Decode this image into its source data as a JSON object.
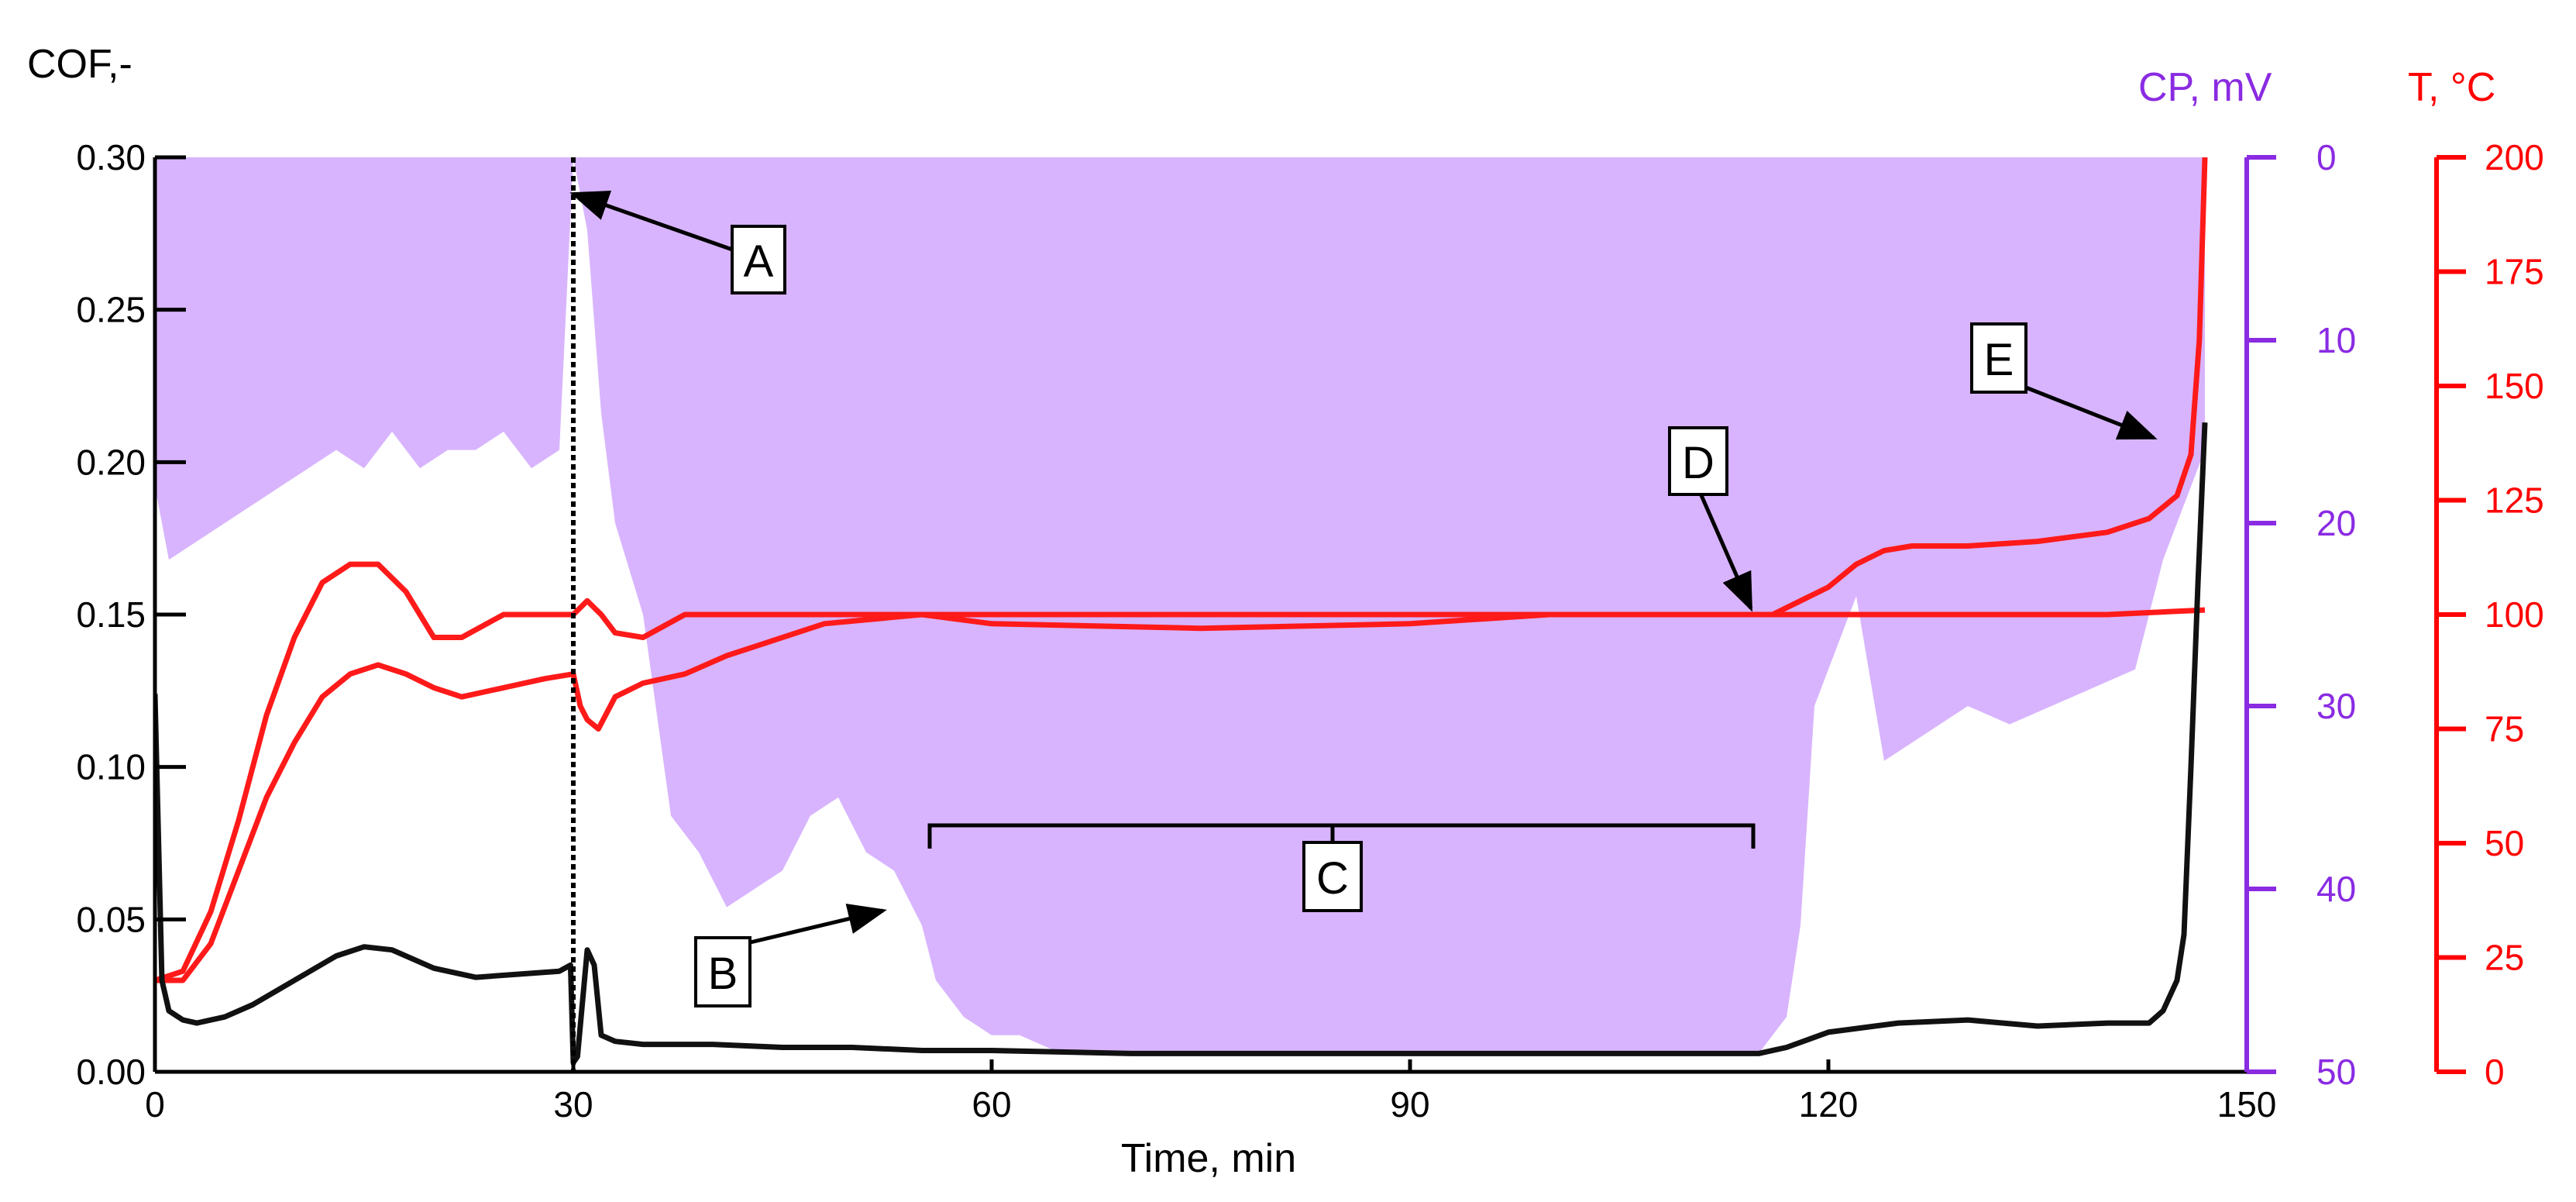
{
  "chart_data": {
    "type": "line",
    "axes": {
      "x": {
        "label": "Time,  min",
        "range": [
          0,
          150
        ],
        "ticks": [
          0,
          30,
          60,
          90,
          120,
          150
        ],
        "tick_labels": [
          "0",
          "30",
          "60",
          "90",
          "120",
          "150"
        ]
      },
      "y_cof": {
        "label": "COF,-",
        "range": [
          0,
          0.3
        ],
        "ticks": [
          0,
          0.05,
          0.1,
          0.15,
          0.2,
          0.25,
          0.3
        ],
        "tick_labels": [
          "0.00",
          "0.05",
          "0.10",
          "0.15",
          "0.20",
          "0.25",
          "0.30"
        ],
        "color": "#000000"
      },
      "y_cp": {
        "label": "CP, mV",
        "range": [
          0,
          50
        ],
        "inverted": true,
        "ticks": [
          0,
          10,
          20,
          30,
          40,
          50
        ],
        "tick_labels": [
          "0",
          "10",
          "20",
          "30",
          "40",
          "50"
        ],
        "color": "#8a2be2"
      },
      "y_t": {
        "label": "T, °C",
        "range": [
          0,
          200
        ],
        "ticks": [
          0,
          25,
          50,
          75,
          100,
          125,
          150,
          175,
          200
        ],
        "tick_labels": [
          "0",
          "25",
          "50",
          "75",
          "100",
          "125",
          "150",
          "175",
          "200"
        ],
        "color": "#ff0000"
      }
    },
    "series": [
      {
        "axis": "y_cp",
        "kind": "area",
        "color": "#d8b4fe",
        "x": [
          0,
          1,
          3,
          5,
          7,
          9,
          11,
          13,
          15,
          17,
          19,
          21,
          23,
          25,
          27,
          29,
          30,
          31,
          32,
          33,
          35,
          37,
          39,
          41,
          43,
          45,
          47,
          49,
          51,
          53,
          55,
          56,
          58,
          60,
          62,
          65,
          70,
          80,
          90,
          100,
          110,
          115,
          117,
          118,
          119,
          120,
          122,
          124,
          126,
          128,
          130,
          133,
          136,
          139,
          142,
          144,
          145,
          146,
          147
        ],
        "y": [
          18,
          22,
          21,
          20,
          19,
          18,
          17,
          16,
          17,
          15,
          17,
          16,
          16,
          15,
          17,
          16,
          0,
          4,
          14,
          20,
          25,
          36,
          38,
          41,
          40,
          39,
          36,
          35,
          38,
          39,
          42,
          45,
          47,
          48,
          48,
          49,
          49,
          49,
          49,
          49,
          49,
          49,
          47,
          42,
          30,
          28,
          24,
          33,
          32,
          31,
          30,
          31,
          30,
          29,
          28,
          22,
          20,
          18,
          16
        ]
      },
      {
        "axis": "y_t",
        "kind": "line",
        "color": "#ff1a1a",
        "x": [
          0,
          2,
          4,
          6,
          8,
          10,
          12,
          14,
          16,
          18,
          20,
          22,
          25,
          28,
          30,
          31,
          32,
          33,
          35,
          38,
          40,
          45,
          50,
          60,
          70,
          80,
          90,
          100,
          110,
          120,
          130,
          140,
          147
        ],
        "y": [
          20,
          22,
          35,
          55,
          78,
          95,
          107,
          111,
          111,
          105,
          95,
          95,
          100,
          100,
          100,
          103,
          100,
          96,
          95,
          100,
          100,
          100,
          100,
          100,
          100,
          100,
          100,
          100,
          100,
          100,
          100,
          100,
          101
        ]
      },
      {
        "axis": "y_t",
        "kind": "line",
        "color": "#ff1a1a",
        "x": [
          0,
          2,
          4,
          6,
          8,
          10,
          12,
          14,
          16,
          18,
          20,
          22,
          25,
          28,
          30,
          30.5,
          31,
          31.8,
          33,
          35,
          38,
          41,
          44,
          48,
          55,
          60,
          75,
          90,
          100,
          110,
          116,
          118,
          120,
          122,
          124,
          126,
          130,
          135,
          140,
          143,
          145,
          146,
          146.6,
          147
        ],
        "y": [
          20,
          20,
          28,
          44,
          60,
          72,
          82,
          87,
          89,
          87,
          84,
          82,
          84,
          86,
          87,
          80,
          77,
          75,
          82,
          85,
          87,
          91,
          94,
          98,
          100,
          98,
          97,
          98,
          100,
          100,
          100,
          103,
          106,
          111,
          114,
          115,
          115,
          116,
          118,
          121,
          126,
          135,
          160,
          200
        ]
      },
      {
        "axis": "y_cof",
        "kind": "line",
        "color": "#111111",
        "x": [
          0,
          0.5,
          1,
          2,
          3,
          5,
          7,
          10,
          13,
          15,
          17,
          20,
          23,
          26,
          29,
          29.8,
          30,
          30.3,
          31,
          31.5,
          32,
          33,
          35,
          40,
          45,
          50,
          55,
          60,
          70,
          80,
          90,
          100,
          110,
          115,
          117,
          120,
          125,
          130,
          135,
          140,
          143,
          144,
          145,
          145.5,
          146,
          146.5,
          147
        ],
        "y": [
          0.124,
          0.03,
          0.02,
          0.017,
          0.016,
          0.018,
          0.022,
          0.03,
          0.038,
          0.041,
          0.04,
          0.034,
          0.031,
          0.032,
          0.033,
          0.035,
          0.003,
          0.005,
          0.04,
          0.035,
          0.012,
          0.01,
          0.009,
          0.009,
          0.008,
          0.008,
          0.007,
          0.007,
          0.006,
          0.006,
          0.006,
          0.006,
          0.006,
          0.006,
          0.008,
          0.013,
          0.016,
          0.017,
          0.015,
          0.016,
          0.016,
          0.02,
          0.03,
          0.045,
          0.1,
          0.16,
          0.213
        ]
      }
    ],
    "annotations": [
      {
        "label": "A",
        "time_min": 30
      },
      {
        "label": "B",
        "time_min": 55
      },
      {
        "label": "C",
        "time_min_start": 56,
        "time_min_end": 116
      },
      {
        "label": "D",
        "time_min": 116
      },
      {
        "label": "E",
        "time_min": 146
      }
    ]
  }
}
